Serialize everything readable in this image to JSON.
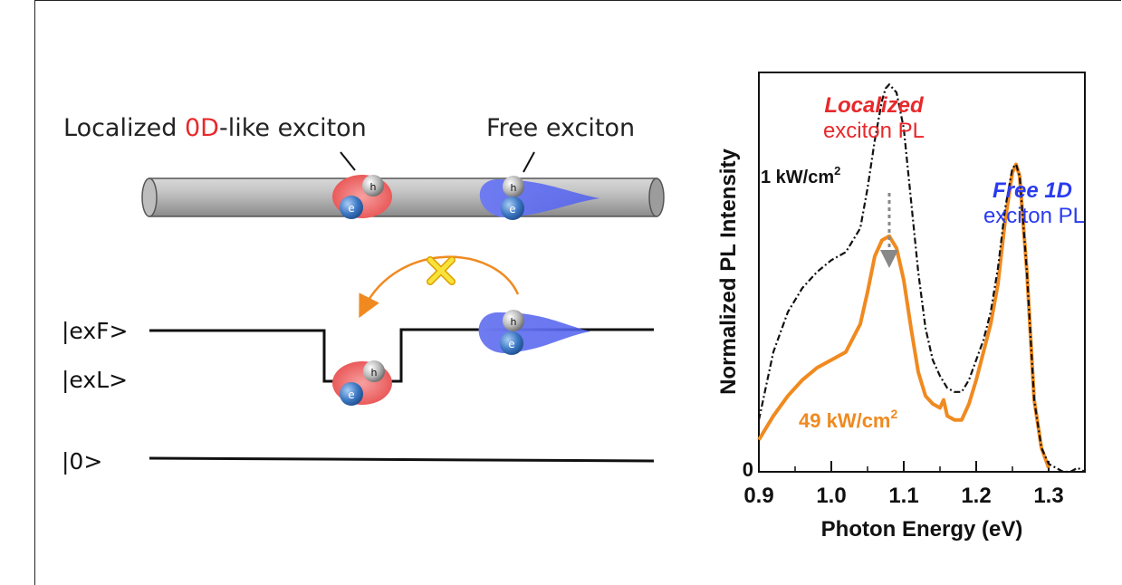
{
  "diagram": {
    "label_localized_prefix": "Localized ",
    "label_localized_0d": "0D",
    "label_localized_suffix": "-like exciton",
    "label_free": "Free exciton",
    "electron_letter": "e",
    "hole_letter": "h",
    "level_exF": "|exF>",
    "level_exL": "|exL>",
    "level_ground": "|0>",
    "colors": {
      "localized": "#e8282b",
      "free": "#2a3bf0",
      "arrow": "#f08a20",
      "cross": "#f2d21a"
    }
  },
  "chart_data": {
    "type": "line",
    "xlabel": "Photon Energy (eV)",
    "ylabel": "Normalized PL Intensity",
    "xlim": [
      0.9,
      1.35
    ],
    "ylim": [
      0,
      1.0
    ],
    "xticks": [
      "0.9",
      "1.0",
      "1.1",
      "1.2",
      "1.3"
    ],
    "yticks": [
      "0"
    ],
    "series": [
      {
        "name": "1 kW/cm",
        "superscript": "2",
        "color": "#111111",
        "x": [
          0.9,
          0.92,
          0.94,
          0.96,
          0.98,
          1.0,
          1.02,
          1.04,
          1.05,
          1.06,
          1.07,
          1.075,
          1.08,
          1.09,
          1.1,
          1.11,
          1.12,
          1.13,
          1.14,
          1.15,
          1.16,
          1.17,
          1.18,
          1.19,
          1.2,
          1.21,
          1.22,
          1.23,
          1.24,
          1.25,
          1.255,
          1.26,
          1.27,
          1.28,
          1.29,
          1.3,
          1.31,
          1.32,
          1.33,
          1.34,
          1.35
        ],
        "y": [
          0.13,
          0.3,
          0.4,
          0.46,
          0.5,
          0.53,
          0.55,
          0.61,
          0.71,
          0.83,
          0.93,
          0.96,
          0.97,
          0.95,
          0.86,
          0.68,
          0.5,
          0.36,
          0.28,
          0.24,
          0.21,
          0.2,
          0.2,
          0.23,
          0.28,
          0.33,
          0.4,
          0.51,
          0.66,
          0.76,
          0.77,
          0.74,
          0.5,
          0.18,
          0.06,
          0.02,
          0.01,
          0.0,
          0.0,
          0.01,
          0.0
        ]
      },
      {
        "name": "49 kW/cm",
        "superscript": "2",
        "color": "#f08a20",
        "x": [
          0.9,
          0.92,
          0.94,
          0.96,
          0.98,
          1.0,
          1.02,
          1.04,
          1.05,
          1.06,
          1.07,
          1.08,
          1.09,
          1.1,
          1.11,
          1.12,
          1.13,
          1.14,
          1.15,
          1.155,
          1.16,
          1.17,
          1.18,
          1.19,
          1.2,
          1.21,
          1.22,
          1.23,
          1.24,
          1.25,
          1.255,
          1.26,
          1.27,
          1.28,
          1.29,
          1.3
        ],
        "y": [
          0.08,
          0.14,
          0.19,
          0.23,
          0.26,
          0.28,
          0.3,
          0.37,
          0.45,
          0.54,
          0.58,
          0.59,
          0.56,
          0.48,
          0.36,
          0.25,
          0.19,
          0.17,
          0.16,
          0.18,
          0.14,
          0.13,
          0.13,
          0.17,
          0.23,
          0.3,
          0.37,
          0.47,
          0.63,
          0.75,
          0.77,
          0.74,
          0.5,
          0.18,
          0.06,
          0.01
        ]
      }
    ],
    "annotations": {
      "localized_title": "Localized",
      "localized_sub": "exciton PL",
      "free_title": "Free 1D",
      "free_sub": "exciton PL"
    }
  }
}
